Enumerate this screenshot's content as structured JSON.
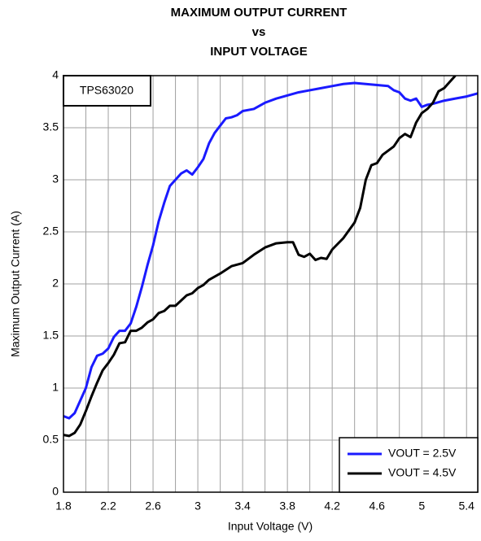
{
  "chart_data": {
    "type": "line",
    "title": [
      "MAXIMUM OUTPUT CURRENT",
      "vs",
      "INPUT VOLTAGE"
    ],
    "x_label": "Input Voltage (V)",
    "y_label": "Maximum Output Current (A)",
    "annotation": "TPS63020",
    "xlim": [
      1.8,
      5.5
    ],
    "xticks": [
      1.8,
      2.2,
      2.6,
      3,
      3.4,
      3.8,
      4.2,
      4.6,
      5,
      5.4
    ],
    "xminor": [
      2.0,
      2.4,
      2.8,
      3.2,
      3.6,
      4.0,
      4.4,
      4.8,
      5.2
    ],
    "ylim": [
      0,
      4
    ],
    "yticks": [
      0,
      0.5,
      1,
      1.5,
      2,
      2.5,
      3,
      3.5,
      4
    ],
    "grid": true,
    "legend": "lower right",
    "series": [
      {
        "name": "VOUT = 2.5V",
        "color": "#1a1aff",
        "x": [
          1.8,
          1.85,
          1.9,
          1.95,
          2.0,
          2.05,
          2.1,
          2.15,
          2.2,
          2.25,
          2.3,
          2.35,
          2.4,
          2.45,
          2.5,
          2.55,
          2.6,
          2.65,
          2.7,
          2.75,
          2.8,
          2.85,
          2.9,
          2.95,
          3.0,
          3.05,
          3.1,
          3.15,
          3.2,
          3.25,
          3.3,
          3.35,
          3.4,
          3.5,
          3.6,
          3.7,
          3.8,
          3.9,
          4.0,
          4.1,
          4.2,
          4.3,
          4.4,
          4.5,
          4.6,
          4.7,
          4.75,
          4.8,
          4.85,
          4.9,
          4.95,
          5.0,
          5.05,
          5.1,
          5.2,
          5.3,
          5.4,
          5.5
        ],
        "values": [
          0.73,
          0.71,
          0.76,
          0.88,
          1.0,
          1.2,
          1.31,
          1.33,
          1.38,
          1.49,
          1.55,
          1.55,
          1.62,
          1.78,
          1.97,
          2.18,
          2.37,
          2.6,
          2.78,
          2.94,
          3.0,
          3.06,
          3.09,
          3.05,
          3.12,
          3.2,
          3.35,
          3.45,
          3.52,
          3.59,
          3.6,
          3.62,
          3.66,
          3.68,
          3.74,
          3.78,
          3.81,
          3.84,
          3.86,
          3.88,
          3.9,
          3.92,
          3.93,
          3.92,
          3.91,
          3.9,
          3.86,
          3.84,
          3.78,
          3.76,
          3.78,
          3.7,
          3.72,
          3.73,
          3.76,
          3.78,
          3.8,
          3.83
        ]
      },
      {
        "name": "VOUT = 4.5V",
        "color": "#000000",
        "x": [
          1.8,
          1.85,
          1.9,
          1.95,
          2.0,
          2.05,
          2.1,
          2.15,
          2.2,
          2.25,
          2.3,
          2.35,
          2.4,
          2.45,
          2.5,
          2.55,
          2.6,
          2.65,
          2.7,
          2.75,
          2.8,
          2.85,
          2.9,
          2.95,
          3.0,
          3.05,
          3.1,
          3.2,
          3.3,
          3.4,
          3.5,
          3.6,
          3.7,
          3.8,
          3.85,
          3.9,
          3.95,
          4.0,
          4.05,
          4.1,
          4.15,
          4.2,
          4.3,
          4.4,
          4.45,
          4.5,
          4.55,
          4.6,
          4.65,
          4.7,
          4.75,
          4.8,
          4.85,
          4.9,
          4.95,
          5.0,
          5.05,
          5.1,
          5.15,
          5.2,
          5.25,
          5.3
        ],
        "values": [
          0.55,
          0.54,
          0.57,
          0.65,
          0.78,
          0.92,
          1.05,
          1.17,
          1.24,
          1.32,
          1.43,
          1.44,
          1.55,
          1.55,
          1.58,
          1.63,
          1.66,
          1.72,
          1.74,
          1.79,
          1.79,
          1.84,
          1.89,
          1.91,
          1.96,
          1.99,
          2.04,
          2.1,
          2.17,
          2.2,
          2.28,
          2.35,
          2.39,
          2.4,
          2.4,
          2.28,
          2.26,
          2.29,
          2.23,
          2.25,
          2.24,
          2.33,
          2.44,
          2.59,
          2.73,
          3.0,
          3.14,
          3.16,
          3.24,
          3.28,
          3.32,
          3.4,
          3.44,
          3.41,
          3.55,
          3.64,
          3.68,
          3.74,
          3.85,
          3.88,
          3.94,
          4.0
        ]
      }
    ]
  }
}
